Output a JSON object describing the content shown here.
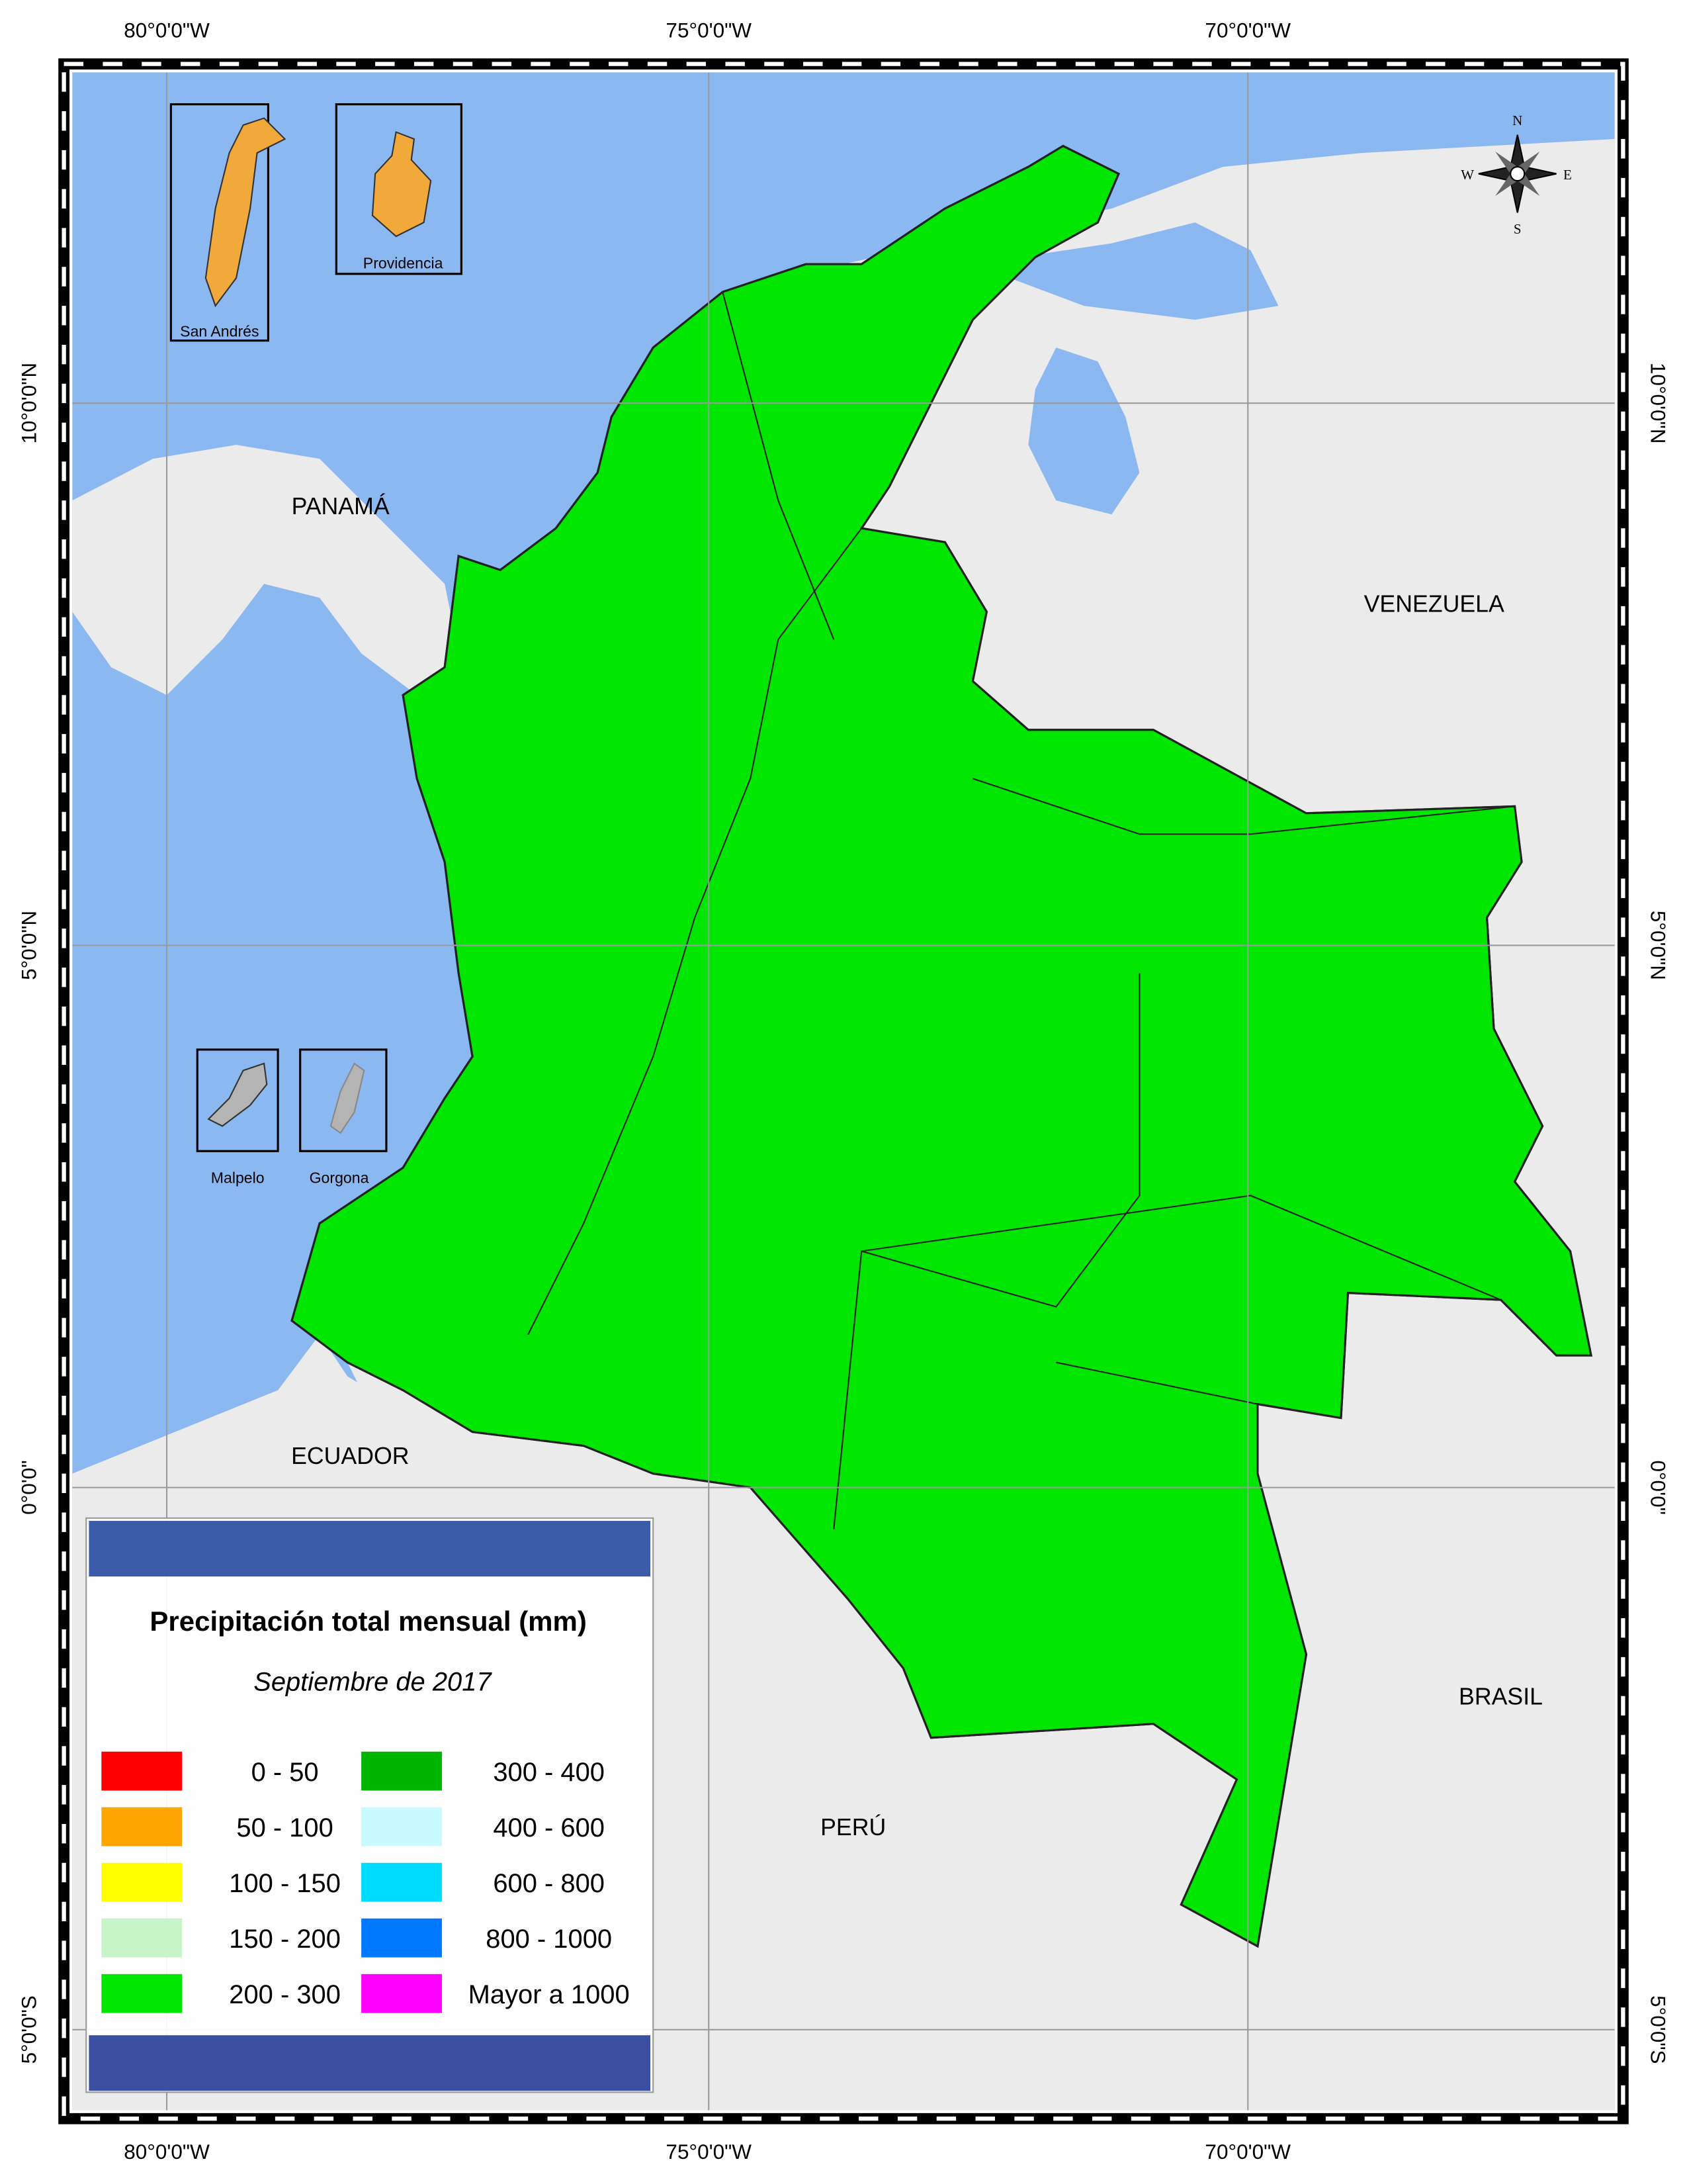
{
  "map": {
    "graticule": {
      "top": [
        "80°0'0\"W",
        "75°0'0\"W",
        "70°0'0\"W"
      ],
      "bottom": [
        "80°0'0\"W",
        "75°0'0\"W",
        "70°0'0\"W"
      ],
      "left": [
        "10°0'0\"N",
        "5°0'0\"N",
        "0°0'0\"",
        "5°0'0\"S"
      ],
      "right": [
        "10°0'0\"N",
        "5°0'0\"N",
        "0°0'0\"",
        "5°0'0\"S"
      ]
    },
    "countries": [
      "PANAMÁ",
      "VENEZUELA",
      "ECUADOR",
      "BRASIL",
      "PERÚ"
    ],
    "insets": [
      "San Andrés",
      "Providencia",
      "Malpelo",
      "Gorgona"
    ],
    "compass": [
      "N",
      "S",
      "W",
      "E"
    ]
  },
  "legend": {
    "title": "Precipitación total mensual (mm)",
    "subtitle": "Septiembre de 2017",
    "items": [
      {
        "label": "0 - 50",
        "color": "#ff0000"
      },
      {
        "label": "50 - 100",
        "color": "#ffa500"
      },
      {
        "label": "100 - 150",
        "color": "#ffff00"
      },
      {
        "label": "150 - 200",
        "color": "#c8f5c8"
      },
      {
        "label": "200 - 300",
        "color": "#00e600"
      },
      {
        "label": "300 - 400",
        "color": "#00b400"
      },
      {
        "label": "400 - 600",
        "color": "#c8faff"
      },
      {
        "label": "600 - 800",
        "color": "#00dcff"
      },
      {
        "label": "800 - 1000",
        "color": "#0078ff"
      },
      {
        "label": "Mayor a 1000",
        "color": "#ff00ff"
      }
    ]
  }
}
